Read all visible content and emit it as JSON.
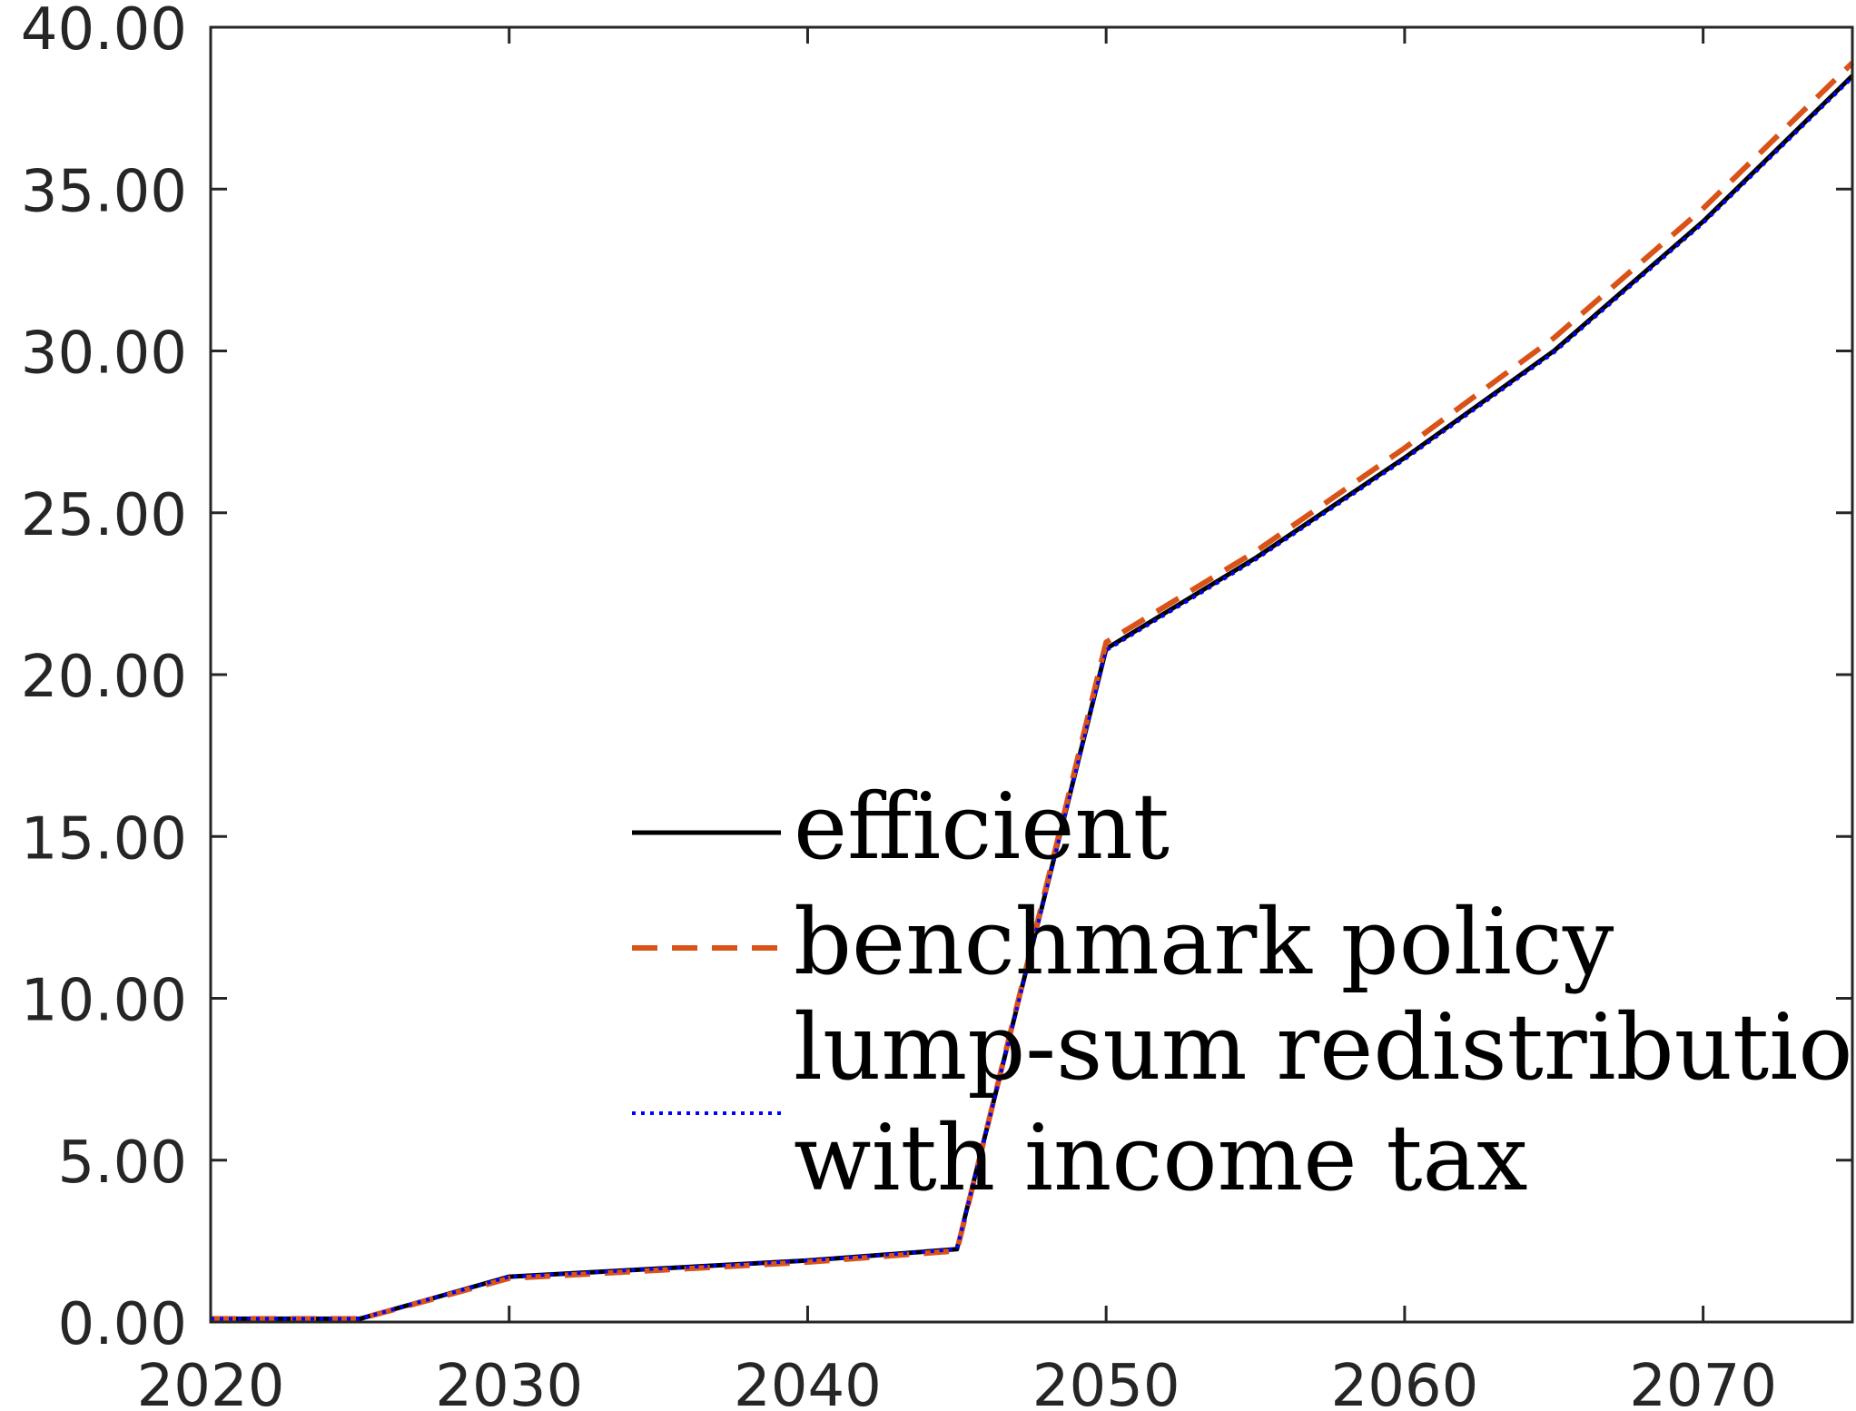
{
  "chart_data": {
    "type": "line",
    "x": [
      2020,
      2025,
      2030,
      2035,
      2040,
      2045,
      2050,
      2055,
      2060,
      2065,
      2070,
      2075
    ],
    "series": [
      {
        "name": "efficient",
        "color": "#000000",
        "style": "solid",
        "values": [
          0.1,
          0.1,
          1.4,
          1.65,
          1.9,
          2.25,
          20.8,
          23.6,
          26.7,
          30.0,
          34.0,
          38.5
        ]
      },
      {
        "name": "benchmark policy",
        "color": "#D95319",
        "style": "dashed",
        "values": [
          0.1,
          0.1,
          1.35,
          1.6,
          1.85,
          2.2,
          21.0,
          23.8,
          27.0,
          30.4,
          34.4,
          38.9
        ]
      },
      {
        "name": "lump-sum redistribution with income tax",
        "name_lines": [
          "lump-sum redistribution",
          "with income tax"
        ],
        "color": "#0000FF",
        "style": "dotted",
        "values": [
          0.1,
          0.1,
          1.4,
          1.65,
          1.9,
          2.25,
          20.75,
          23.55,
          26.65,
          29.95,
          33.95,
          38.45
        ]
      }
    ],
    "xlim": [
      2020,
      2075
    ],
    "ylim": [
      0,
      40
    ],
    "xticks": [
      2020,
      2030,
      2040,
      2050,
      2060,
      2070
    ],
    "xtick_labels": [
      "2020",
      "2030",
      "2040",
      "2050",
      "2060",
      "2070"
    ],
    "yticks": [
      0,
      5,
      10,
      15,
      20,
      25,
      30,
      35,
      40
    ],
    "ytick_labels": [
      "0.00",
      "5.00",
      "10.00",
      "15.00",
      "20.00",
      "25.00",
      "30.00",
      "35.00",
      "40.00"
    ],
    "title": "",
    "xlabel": "",
    "ylabel": "",
    "grid": false,
    "legend_placement": "lower-center"
  }
}
